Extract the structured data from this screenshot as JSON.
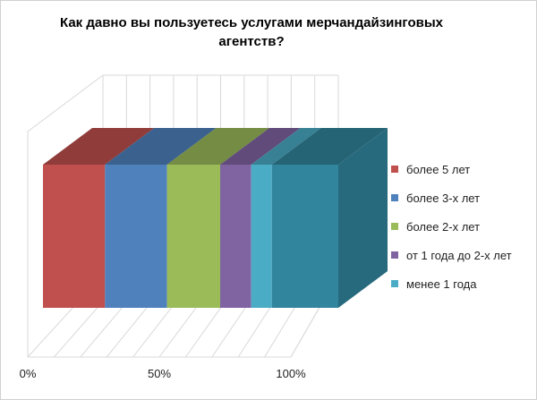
{
  "chart_data": {
    "type": "bar",
    "stacked": "100%",
    "three_d": true,
    "orientation": "horizontal",
    "title": "Как давно  вы пользуетесь услугами мерчандайзинговых агентств?",
    "xlabel": "",
    "ylabel": "",
    "xlim": [
      0,
      100
    ],
    "x_tick_labels": [
      "0%",
      "50%",
      "100%"
    ],
    "grid": true,
    "legend_position": "right",
    "series": [
      {
        "name": "более 5 лет",
        "values": [
          21
        ],
        "color": "#C0504D"
      },
      {
        "name": "более 3-х лет",
        "values": [
          21
        ],
        "color": "#4F81BD"
      },
      {
        "name": "более 2-х лет",
        "values": [
          18
        ],
        "color": "#9BBB59"
      },
      {
        "name": "от 1 года до 2-х лет",
        "values": [
          10.5
        ],
        "color": "#8064A2"
      },
      {
        "name": "менее  1 года",
        "values": [
          7
        ],
        "color": "#4BACC6"
      },
      {
        "name": "",
        "values": [
          22.5
        ],
        "color": "#31859C"
      }
    ]
  }
}
